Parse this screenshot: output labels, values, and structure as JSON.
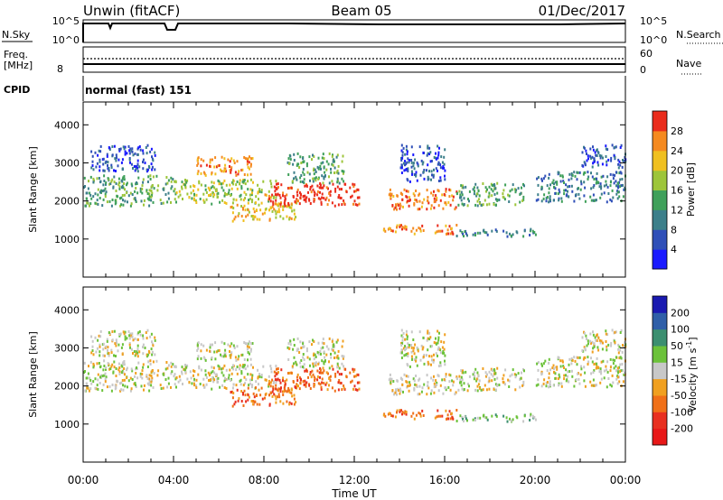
{
  "header": {
    "station": "Unwin (fitACF)",
    "beam": "Beam 05",
    "date": "01/Dec/2017"
  },
  "strips": {
    "nsky": {
      "label": "N.Sky",
      "right_label": "N.Search",
      "ticks_left": [
        "10^5",
        "10^0"
      ],
      "ticks_right": [
        "10^5",
        "10^0"
      ]
    },
    "freq": {
      "label_line1": "Freq.",
      "label_line2": "[MHz]",
      "right_label": "Nave",
      "ticks_left": [
        "8"
      ],
      "ticks_right": [
        "60",
        "0"
      ]
    },
    "cpid": {
      "label": "CPID",
      "value": "normal (fast) 151"
    }
  },
  "chart_data": [
    {
      "type": "heatmap",
      "name": "power",
      "ylabel": "Slant Range [km]",
      "ylim": [
        0,
        4600
      ],
      "yticks": [
        "1000",
        "2000",
        "3000",
        "4000"
      ],
      "x": [
        "00:00",
        "04:00",
        "08:00",
        "12:00",
        "16:00",
        "20:00",
        "00:00"
      ],
      "xlim_hours": [
        0,
        24
      ],
      "colorbar": {
        "label": "Power [dB]",
        "ticks": [
          "4",
          "8",
          "12",
          "16",
          "20",
          "24",
          "28"
        ],
        "colors": [
          "#1a1aff",
          "#2f4fb8",
          "#3c7f8a",
          "#3fa05a",
          "#9dc53a",
          "#f0c020",
          "#f58a20",
          "#ea2c1c"
        ]
      },
      "regions": [
        {
          "t0": 0.0,
          "t1": 4.0,
          "r0": 1900,
          "r1": 2700,
          "level": 3
        },
        {
          "t0": 0.3,
          "t1": 3.2,
          "r0": 2800,
          "r1": 3500,
          "level": 1
        },
        {
          "t0": 4.0,
          "t1": 8.5,
          "r0": 1950,
          "r1": 2600,
          "level": 4
        },
        {
          "t0": 5.0,
          "t1": 7.5,
          "r0": 2700,
          "r1": 3200,
          "level": 6
        },
        {
          "t0": 6.5,
          "t1": 9.5,
          "r0": 1500,
          "r1": 2000,
          "level": 5
        },
        {
          "t0": 8.0,
          "t1": 12.2,
          "r0": 1900,
          "r1": 2500,
          "level": 7
        },
        {
          "t0": 9.0,
          "t1": 11.5,
          "r0": 2500,
          "r1": 3300,
          "level": 3
        },
        {
          "t0": 13.2,
          "t1": 16.5,
          "r0": 1150,
          "r1": 1400,
          "level": 6
        },
        {
          "t0": 13.5,
          "t1": 16.5,
          "r0": 1800,
          "r1": 2350,
          "level": 6
        },
        {
          "t0": 14.0,
          "t1": 16.0,
          "r0": 2500,
          "r1": 3500,
          "level": 1
        },
        {
          "t0": 16.5,
          "t1": 20.0,
          "r0": 1100,
          "r1": 1300,
          "level": 2
        },
        {
          "t0": 16.5,
          "t1": 19.5,
          "r0": 1900,
          "r1": 2500,
          "level": 3
        },
        {
          "t0": 20.0,
          "t1": 24.0,
          "r0": 2000,
          "r1": 2800,
          "level": 2
        },
        {
          "t0": 22.0,
          "t1": 24.0,
          "r0": 2900,
          "r1": 3500,
          "level": 1
        }
      ]
    },
    {
      "type": "heatmap",
      "name": "velocity",
      "ylabel": "Slant Range [km]",
      "ylim": [
        0,
        4600
      ],
      "yticks": [
        "1000",
        "2000",
        "3000",
        "4000"
      ],
      "x": [
        "00:00",
        "04:00",
        "08:00",
        "12:00",
        "16:00",
        "20:00",
        "00:00"
      ],
      "xlabel": "Time UT",
      "xlim_hours": [
        0,
        24
      ],
      "colorbar": {
        "label_main": "Velocity [m s",
        "label_sup": "-1",
        "label_end": "]",
        "ticks": [
          "200",
          "100",
          "50",
          "15",
          "-15",
          "-50",
          "-100",
          "-200"
        ],
        "colors": [
          "#1a1ab0",
          "#2f5fa8",
          "#3c8f70",
          "#6cc23a",
          "#c8c8c8",
          "#f0a020",
          "#f07018",
          "#e83020",
          "#e81818"
        ]
      },
      "regions": [
        {
          "t0": 0.0,
          "t1": 4.0,
          "r0": 1900,
          "r1": 2700,
          "level": 4
        },
        {
          "t0": 0.3,
          "t1": 3.2,
          "r0": 2800,
          "r1": 3500,
          "level": 4
        },
        {
          "t0": 4.0,
          "t1": 8.5,
          "r0": 1950,
          "r1": 2600,
          "level": 4
        },
        {
          "t0": 5.0,
          "t1": 7.5,
          "r0": 2700,
          "r1": 3200,
          "level": 4
        },
        {
          "t0": 6.5,
          "t1": 9.5,
          "r0": 1500,
          "r1": 2000,
          "level": 6
        },
        {
          "t0": 8.0,
          "t1": 12.2,
          "r0": 1900,
          "r1": 2500,
          "level": 6
        },
        {
          "t0": 9.0,
          "t1": 11.5,
          "r0": 2500,
          "r1": 3300,
          "level": 4
        },
        {
          "t0": 13.2,
          "t1": 16.5,
          "r0": 1150,
          "r1": 1400,
          "level": 6
        },
        {
          "t0": 13.5,
          "t1": 16.5,
          "r0": 1800,
          "r1": 2350,
          "level": 4
        },
        {
          "t0": 14.0,
          "t1": 16.0,
          "r0": 2500,
          "r1": 3500,
          "level": 4
        },
        {
          "t0": 16.5,
          "t1": 20.0,
          "r0": 1100,
          "r1": 1300,
          "level": 3
        },
        {
          "t0": 16.5,
          "t1": 19.5,
          "r0": 1900,
          "r1": 2500,
          "level": 4
        },
        {
          "t0": 20.0,
          "t1": 24.0,
          "r0": 2000,
          "r1": 2800,
          "level": 4
        },
        {
          "t0": 22.0,
          "t1": 24.0,
          "r0": 2900,
          "r1": 3500,
          "level": 4
        }
      ]
    }
  ]
}
